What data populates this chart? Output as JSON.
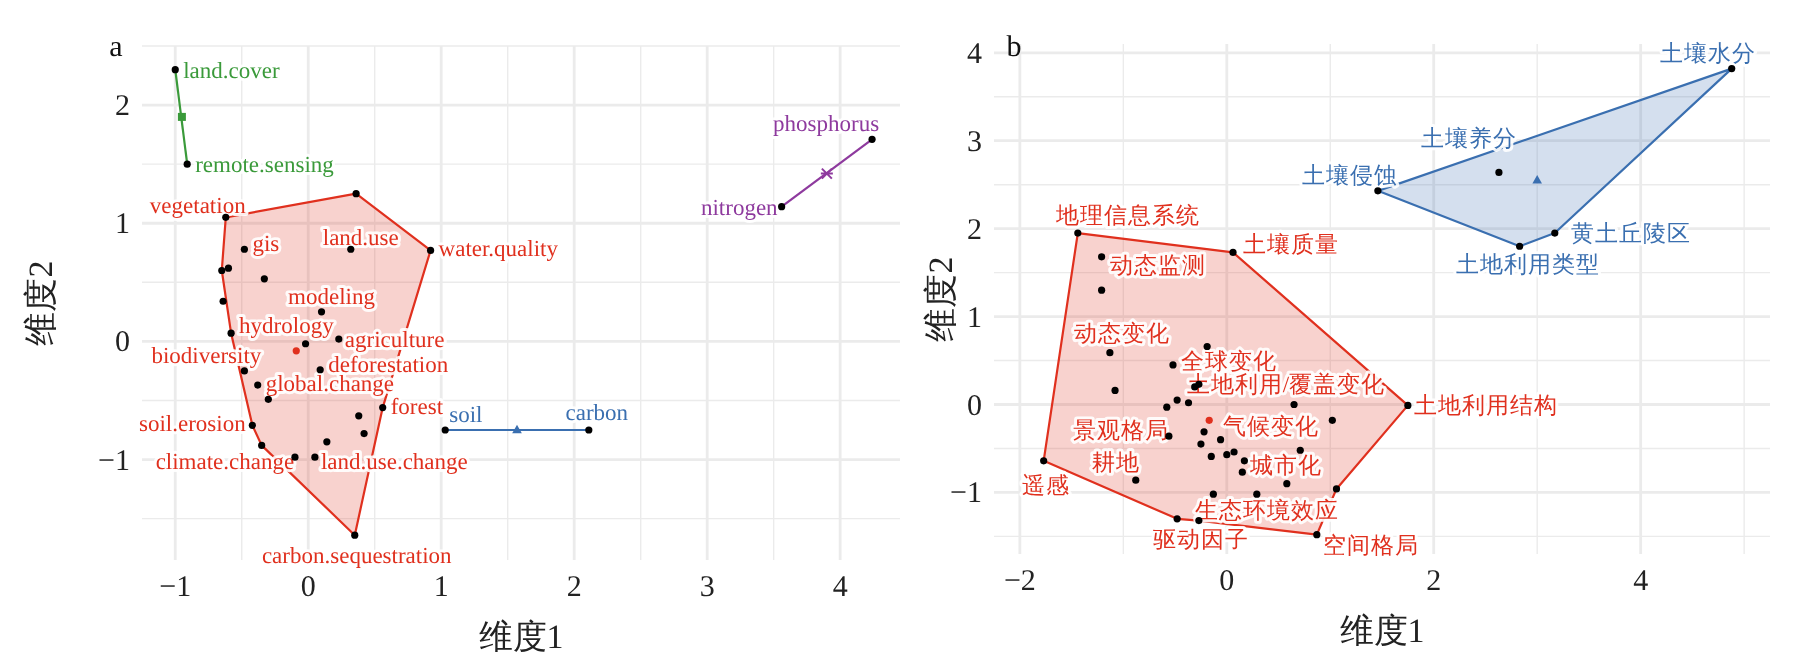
{
  "chart_data": [
    {
      "type": "scatter",
      "title": "a",
      "xlabel": "维度1",
      "ylabel": "维度2",
      "xlim": [
        -1.25,
        4.45
      ],
      "ylim": [
        -1.85,
        2.5
      ],
      "xticks": [
        -1,
        0,
        1,
        2,
        3,
        4
      ],
      "yticks": [
        -1,
        0,
        1,
        2
      ],
      "grid": true,
      "series": [
        {
          "type": "line",
          "color": "#3a9a3a",
          "x": [
            -1.0,
            -0.91
          ],
          "values": [
            2.3,
            1.5
          ]
        },
        {
          "type": "scatter",
          "color": "#000000",
          "marker": "circle",
          "x": [
            -1.0,
            -0.91
          ],
          "values": [
            2.3,
            1.5
          ],
          "value_labels": [
            "land.cover",
            "remote.sensing"
          ]
        },
        {
          "type": "scatter",
          "color": "#3a9a3a",
          "marker": "square",
          "x": [
            -0.95
          ],
          "values": [
            1.9
          ]
        },
        {
          "type": "area",
          "color": "#e0301e",
          "x": [
            -0.62,
            0.36,
            0.92,
            0.56,
            0.35,
            -0.35,
            -0.42,
            -0.58,
            -0.65
          ],
          "values": [
            1.05,
            1.25,
            0.77,
            -0.56,
            -1.64,
            -0.88,
            -0.71,
            0.07,
            0.6
          ]
        },
        {
          "type": "scatter",
          "color": "#000000",
          "marker": "circle",
          "x": [
            -0.62,
            0.36,
            -0.48,
            0.32,
            0.92,
            -0.65,
            -0.6,
            -0.33,
            -0.64,
            0.1,
            -0.58,
            -0.02,
            0.23,
            -0.48,
            0.09,
            -0.38,
            -0.3,
            0.56,
            0.38,
            0.42,
            -0.42,
            -0.35,
            0.14,
            -0.1,
            0.05,
            0.35
          ],
          "values": [
            1.05,
            1.25,
            0.78,
            0.78,
            0.77,
            0.6,
            0.62,
            0.53,
            0.34,
            0.25,
            0.07,
            -0.02,
            0.02,
            -0.25,
            -0.24,
            -0.37,
            -0.49,
            -0.56,
            -0.63,
            -0.78,
            -0.71,
            -0.88,
            -0.85,
            -0.98,
            -0.98,
            -1.64
          ],
          "value_labels": [
            "vegetation",
            null,
            "gis",
            "land.use",
            "water.quality",
            null,
            null,
            null,
            null,
            "modeling",
            "hydrology",
            null,
            "agriculture",
            "biodiversity",
            "deforestation",
            "global.change",
            null,
            "forest",
            null,
            null,
            "soil.erosion",
            null,
            null,
            "climate.change",
            "land.use.change",
            "carbon.sequestration"
          ]
        },
        {
          "type": "scatter",
          "color": "#e0301e",
          "marker": "circle",
          "x": [
            -0.09
          ],
          "values": [
            -0.08
          ]
        },
        {
          "type": "line",
          "color": "#3a6fb0",
          "x": [
            1.03,
            2.11
          ],
          "values": [
            -0.75,
            -0.75
          ]
        },
        {
          "type": "scatter",
          "color": "#000000",
          "marker": "circle",
          "x": [
            1.03,
            2.11
          ],
          "values": [
            -0.75,
            -0.75
          ],
          "value_labels": [
            "soil",
            "carbon"
          ]
        },
        {
          "type": "scatter",
          "color": "#3a6fb0",
          "marker": "triangle",
          "x": [
            1.57
          ],
          "values": [
            -0.75
          ]
        },
        {
          "type": "line",
          "color": "#8e3a9e",
          "x": [
            3.56,
            4.24
          ],
          "values": [
            1.14,
            1.71
          ]
        },
        {
          "type": "scatter",
          "color": "#000000",
          "marker": "circle",
          "x": [
            3.56,
            4.24
          ],
          "values": [
            1.14,
            1.71
          ],
          "value_labels": [
            "nitrogen",
            "phosphorus"
          ]
        },
        {
          "type": "scatter",
          "color": "#8e3a9e",
          "marker": "cross",
          "x": [
            3.9
          ],
          "values": [
            1.42
          ]
        }
      ]
    },
    {
      "type": "scatter",
      "title": "b",
      "xlabel": "维度1",
      "ylabel": "维度2",
      "xlim": [
        -2.25,
        5.25
      ],
      "ylim": [
        -1.7,
        4.1
      ],
      "xticks": [
        -2,
        0,
        2,
        4
      ],
      "yticks": [
        -1,
        0,
        1,
        2,
        3,
        4
      ],
      "grid": true,
      "series": [
        {
          "type": "area",
          "color": "#e0301e",
          "x": [
            -1.44,
            0.06,
            1.75,
            1.06,
            0.87,
            -0.27,
            -0.48,
            -1.77
          ],
          "values": [
            1.95,
            1.73,
            -0.01,
            -0.96,
            -1.48,
            -1.32,
            -1.3,
            -0.64
          ]
        },
        {
          "type": "scatter",
          "color": "#000000",
          "marker": "circle",
          "x": [
            -1.44,
            0.06,
            -1.21,
            -1.21,
            -1.13,
            -0.19,
            -0.52,
            -1.08,
            -0.31,
            -0.27,
            -0.58,
            -0.48,
            -0.37,
            0.65,
            1.75,
            1.02,
            -0.22,
            -0.06,
            -0.56,
            -0.25,
            -0.15,
            0.0,
            0.07,
            0.71,
            0.17,
            0.15,
            -0.88,
            0.58,
            1.06,
            -1.77,
            -0.13,
            0.29,
            -0.48,
            -0.27,
            0.87
          ],
          "values": [
            1.95,
            1.73,
            1.68,
            1.3,
            0.59,
            0.66,
            0.45,
            0.16,
            0.2,
            0.23,
            -0.03,
            0.05,
            0.02,
            0.0,
            -0.01,
            -0.18,
            -0.31,
            -0.4,
            -0.36,
            -0.45,
            -0.59,
            -0.57,
            -0.54,
            -0.52,
            -0.64,
            -0.77,
            -0.86,
            -0.9,
            -0.96,
            -0.64,
            -1.02,
            -1.02,
            -1.3,
            -1.32,
            -1.48
          ],
          "value_labels": [
            "地理信息系统",
            "土壤质量",
            "动态监测",
            null,
            "动态变化",
            null,
            "全球变化",
            null,
            null,
            "土地利用/覆盖变化",
            null,
            null,
            null,
            null,
            "土地利用结构",
            null,
            null,
            "气候变化",
            "景观格局",
            null,
            null,
            null,
            null,
            null,
            "城市化",
            null,
            "耕地",
            null,
            null,
            "遥感",
            null,
            "生态环境效应",
            null,
            "驱动因子",
            "空间格局"
          ]
        },
        {
          "type": "scatter",
          "color": "#e0301e",
          "marker": "circle",
          "x": [
            -0.17
          ],
          "values": [
            -0.18
          ]
        },
        {
          "type": "area",
          "color": "#3a6fb0",
          "x": [
            1.46,
            4.88,
            3.17,
            2.83
          ],
          "values": [
            2.43,
            3.82,
            1.95,
            1.8
          ]
        },
        {
          "type": "scatter",
          "color": "#000000",
          "marker": "circle",
          "x": [
            4.88,
            2.63,
            1.46,
            3.17,
            2.83
          ],
          "values": [
            3.82,
            2.64,
            2.43,
            1.95,
            1.8
          ],
          "value_labels": [
            "土壤水分",
            "土壤养分",
            "土壤侵蚀",
            "黄土丘陵区",
            "土地利用类型"
          ]
        },
        {
          "type": "scatter",
          "color": "#3a6fb0",
          "marker": "triangle",
          "x": [
            3.0
          ],
          "values": [
            2.55
          ]
        }
      ]
    }
  ]
}
